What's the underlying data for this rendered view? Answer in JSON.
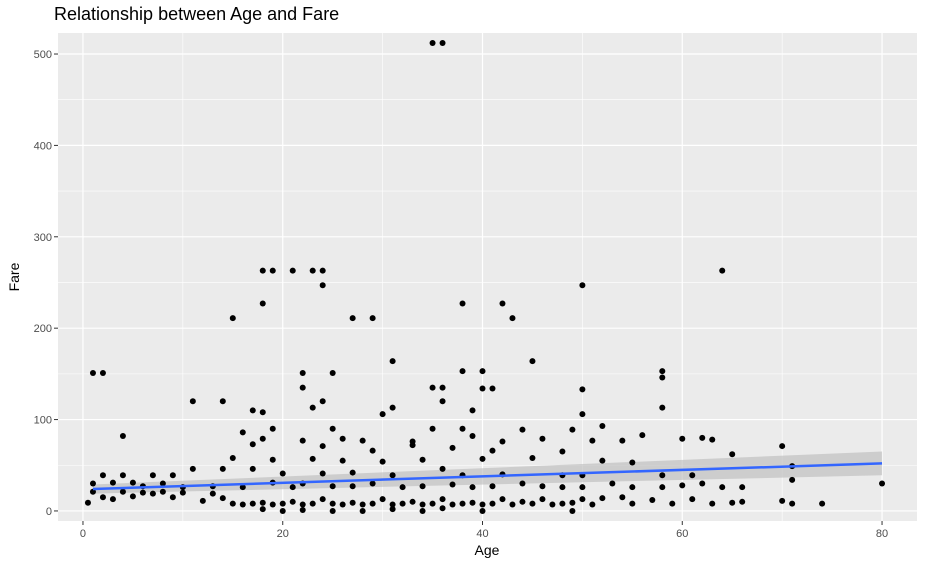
{
  "chart_data": {
    "type": "scatter",
    "title": "Relationship between Age and Fare",
    "xlabel": "Age",
    "ylabel": "Fare",
    "xlim": [
      -2.5,
      83.5
    ],
    "ylim": [
      -11,
      523
    ],
    "x_ticks": [
      0,
      20,
      40,
      60,
      80
    ],
    "y_ticks": [
      0,
      100,
      200,
      300,
      400,
      500
    ],
    "grid": true,
    "legend": "none",
    "colors": {
      "panel": "#ebebeb",
      "grid": "#ffffff",
      "points": "#000000",
      "trend": "#3366ff",
      "ribbon": "#bdbdbd"
    },
    "trend_line": {
      "method": "lm",
      "x": [
        1,
        80
      ],
      "y": [
        24,
        52
      ],
      "ci_lower": [
        19,
        39
      ],
      "ci_upper": [
        29,
        65
      ]
    },
    "points": [
      [
        35,
        512
      ],
      [
        36,
        512
      ],
      [
        18,
        263
      ],
      [
        19,
        263
      ],
      [
        21,
        263
      ],
      [
        23,
        263
      ],
      [
        24,
        263
      ],
      [
        64,
        263
      ],
      [
        18,
        227
      ],
      [
        24,
        247
      ],
      [
        38,
        227
      ],
      [
        42,
        227
      ],
      [
        50,
        247
      ],
      [
        15,
        211
      ],
      [
        27,
        211
      ],
      [
        29,
        211
      ],
      [
        43,
        211
      ],
      [
        31,
        164
      ],
      [
        45,
        164
      ],
      [
        1,
        151
      ],
      [
        2,
        151
      ],
      [
        22,
        151
      ],
      [
        25,
        151
      ],
      [
        38,
        153
      ],
      [
        40,
        153
      ],
      [
        58,
        153
      ],
      [
        58,
        146
      ],
      [
        22,
        135
      ],
      [
        35,
        135
      ],
      [
        36,
        135
      ],
      [
        40,
        134
      ],
      [
        41,
        134
      ],
      [
        50,
        133
      ],
      [
        11,
        120
      ],
      [
        14,
        120
      ],
      [
        36,
        120
      ],
      [
        24,
        120
      ],
      [
        23,
        113
      ],
      [
        31,
        113
      ],
      [
        39,
        110
      ],
      [
        58,
        113
      ],
      [
        17,
        110
      ],
      [
        18,
        108
      ],
      [
        30,
        106
      ],
      [
        50,
        106
      ],
      [
        52,
        93
      ],
      [
        16,
        86
      ],
      [
        19,
        90
      ],
      [
        25,
        90
      ],
      [
        35,
        90
      ],
      [
        38,
        90
      ],
      [
        44,
        89
      ],
      [
        49,
        89
      ],
      [
        4,
        82
      ],
      [
        18,
        79
      ],
      [
        22,
        77
      ],
      [
        26,
        79
      ],
      [
        28,
        77
      ],
      [
        33,
        76
      ],
      [
        39,
        82
      ],
      [
        42,
        76
      ],
      [
        46,
        79
      ],
      [
        56,
        83
      ],
      [
        60,
        79
      ],
      [
        62,
        80
      ],
      [
        63,
        78
      ],
      [
        54,
        77
      ],
      [
        51,
        77
      ],
      [
        17,
        73
      ],
      [
        24,
        71
      ],
      [
        29,
        66
      ],
      [
        33,
        72
      ],
      [
        37,
        69
      ],
      [
        41,
        66
      ],
      [
        48,
        65
      ],
      [
        65,
        62
      ],
      [
        70,
        71
      ],
      [
        15,
        58
      ],
      [
        19,
        56
      ],
      [
        23,
        57
      ],
      [
        26,
        55
      ],
      [
        30,
        54
      ],
      [
        34,
        56
      ],
      [
        40,
        57
      ],
      [
        45,
        58
      ],
      [
        52,
        55
      ],
      [
        55,
        53
      ],
      [
        2,
        39
      ],
      [
        4,
        39
      ],
      [
        7,
        39
      ],
      [
        9,
        39
      ],
      [
        11,
        46
      ],
      [
        14,
        46
      ],
      [
        17,
        46
      ],
      [
        20,
        41
      ],
      [
        24,
        41
      ],
      [
        27,
        42
      ],
      [
        31,
        39
      ],
      [
        36,
        46
      ],
      [
        38,
        39
      ],
      [
        42,
        40
      ],
      [
        48,
        39
      ],
      [
        50,
        39
      ],
      [
        58,
        39
      ],
      [
        61,
        39
      ],
      [
        71,
        49
      ],
      [
        1,
        30
      ],
      [
        3,
        31
      ],
      [
        5,
        31
      ],
      [
        6,
        27
      ],
      [
        8,
        30
      ],
      [
        10,
        26
      ],
      [
        13,
        27
      ],
      [
        16,
        26
      ],
      [
        19,
        31
      ],
      [
        21,
        26
      ],
      [
        22,
        30
      ],
      [
        25,
        27
      ],
      [
        27,
        27
      ],
      [
        29,
        30
      ],
      [
        32,
        26
      ],
      [
        34,
        27
      ],
      [
        37,
        29
      ],
      [
        39,
        26
      ],
      [
        41,
        27
      ],
      [
        44,
        30
      ],
      [
        46,
        27
      ],
      [
        48,
        26
      ],
      [
        50,
        26
      ],
      [
        53,
        30
      ],
      [
        55,
        26
      ],
      [
        58,
        26
      ],
      [
        60,
        28
      ],
      [
        62,
        30
      ],
      [
        64,
        26
      ],
      [
        66,
        26
      ],
      [
        71,
        34
      ],
      [
        0.5,
        9
      ],
      [
        1,
        21
      ],
      [
        2,
        15
      ],
      [
        3,
        13
      ],
      [
        4,
        21
      ],
      [
        5,
        16
      ],
      [
        6,
        20
      ],
      [
        7,
        19
      ],
      [
        8,
        21
      ],
      [
        9,
        15
      ],
      [
        10,
        20
      ],
      [
        12,
        11
      ],
      [
        13,
        19
      ],
      [
        14,
        14
      ],
      [
        15,
        8
      ],
      [
        16,
        7
      ],
      [
        17,
        8
      ],
      [
        18,
        9
      ],
      [
        19,
        7
      ],
      [
        20,
        8
      ],
      [
        21,
        10
      ],
      [
        22,
        7
      ],
      [
        23,
        8
      ],
      [
        24,
        13
      ],
      [
        25,
        8
      ],
      [
        26,
        7
      ],
      [
        27,
        9
      ],
      [
        28,
        7
      ],
      [
        29,
        8
      ],
      [
        30,
        13
      ],
      [
        31,
        7
      ],
      [
        32,
        8
      ],
      [
        33,
        10
      ],
      [
        34,
        7
      ],
      [
        35,
        8
      ],
      [
        36,
        13
      ],
      [
        37,
        7
      ],
      [
        38,
        8
      ],
      [
        39,
        9
      ],
      [
        40,
        7
      ],
      [
        41,
        8
      ],
      [
        42,
        13
      ],
      [
        43,
        7
      ],
      [
        44,
        10
      ],
      [
        45,
        8
      ],
      [
        46,
        13
      ],
      [
        47,
        7
      ],
      [
        48,
        8
      ],
      [
        49,
        9
      ],
      [
        50,
        13
      ],
      [
        51,
        7
      ],
      [
        52,
        14
      ],
      [
        54,
        15
      ],
      [
        55,
        8
      ],
      [
        57,
        12
      ],
      [
        59,
        8
      ],
      [
        61,
        13
      ],
      [
        63,
        8
      ],
      [
        65,
        9
      ],
      [
        66,
        10
      ],
      [
        70,
        11
      ],
      [
        71,
        8
      ],
      [
        74,
        8
      ],
      [
        80,
        30
      ],
      [
        18,
        2
      ],
      [
        20,
        0
      ],
      [
        22,
        1
      ],
      [
        25,
        0
      ],
      [
        28,
        0
      ],
      [
        31,
        2
      ],
      [
        34,
        0
      ],
      [
        36,
        3
      ],
      [
        40,
        0
      ],
      [
        49,
        0
      ]
    ]
  }
}
